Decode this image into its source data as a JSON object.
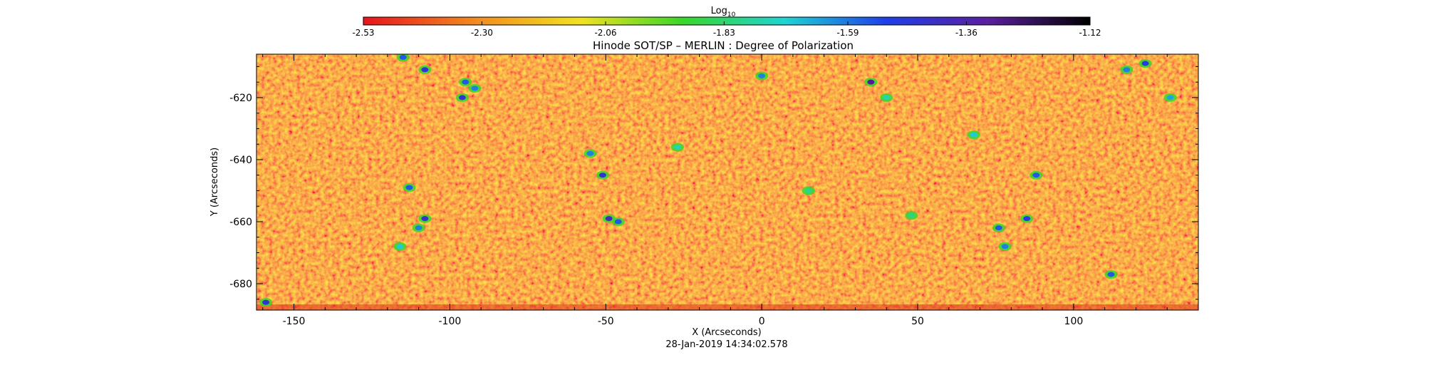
{
  "chart_data": {
    "type": "heatmap",
    "title": "Hinode SOT/SP – MERLIN : Degree of Polarization",
    "xlabel": "X (Arcseconds)",
    "ylabel": "Y (Arcseconds)",
    "timestamp": "28-Jan-2019 14:34:02.578",
    "xlim": [
      -162,
      140
    ],
    "ylim": [
      -688.5,
      -606
    ],
    "x_ticks": [
      -150,
      -100,
      -50,
      0,
      50,
      100
    ],
    "x_tick_labels": [
      "-150",
      "-100",
      "-50",
      "0",
      "50",
      "100"
    ],
    "y_ticks": [
      -620,
      -640,
      -660,
      -680
    ],
    "y_tick_labels": [
      "-620",
      "-640",
      "-660",
      "-680"
    ],
    "colorbar": {
      "title_base": "Log",
      "title_sub": "10",
      "min": -2.53,
      "max": -1.12,
      "tick_values": [
        -2.53,
        -2.3,
        -2.06,
        -1.83,
        -1.59,
        -1.36,
        -1.12
      ],
      "tick_labels": [
        "-2.53",
        "-2.30",
        "-2.06",
        "-1.83",
        "-1.59",
        "-1.36",
        "-1.12"
      ]
    },
    "field_value_range_typical": [
      -2.53,
      -2.15
    ],
    "colors": {
      "low": "#e8141c",
      "orange": "#f28f1f",
      "yellow": "#f2e21f",
      "green": "#39d629",
      "cyan": "#1fd4d4",
      "blue": "#1f3ee8",
      "purple": "#5a1f9e",
      "high": "#000000"
    },
    "features": [
      {
        "x": -115,
        "y": -607,
        "value": -1.55
      },
      {
        "x": -108,
        "y": -611,
        "value": -1.45
      },
      {
        "x": -95,
        "y": -615,
        "value": -1.55
      },
      {
        "x": -96,
        "y": -620,
        "value": -1.45
      },
      {
        "x": -92,
        "y": -617,
        "value": -1.6
      },
      {
        "x": -113,
        "y": -649,
        "value": -1.55
      },
      {
        "x": -108,
        "y": -659,
        "value": -1.45
      },
      {
        "x": -110,
        "y": -662,
        "value": -1.6
      },
      {
        "x": -116,
        "y": -668,
        "value": -1.7
      },
      {
        "x": -159,
        "y": -686,
        "value": -1.45
      },
      {
        "x": -51,
        "y": -645,
        "value": -1.45
      },
      {
        "x": -55,
        "y": -638,
        "value": -1.6
      },
      {
        "x": -49,
        "y": -659,
        "value": -1.4
      },
      {
        "x": -46,
        "y": -660,
        "value": -1.55
      },
      {
        "x": 0,
        "y": -613,
        "value": -1.6
      },
      {
        "x": 35,
        "y": -615,
        "value": -1.3
      },
      {
        "x": 40,
        "y": -620,
        "value": -1.75
      },
      {
        "x": 68,
        "y": -632,
        "value": -1.7
      },
      {
        "x": 88,
        "y": -645,
        "value": -1.55
      },
      {
        "x": 85,
        "y": -659,
        "value": -1.5
      },
      {
        "x": 76,
        "y": -662,
        "value": -1.55
      },
      {
        "x": 78,
        "y": -668,
        "value": -1.6
      },
      {
        "x": 112,
        "y": -677,
        "value": -1.55
      },
      {
        "x": 117,
        "y": -611,
        "value": -1.6
      },
      {
        "x": 123,
        "y": -609,
        "value": -1.5
      },
      {
        "x": 131,
        "y": -620,
        "value": -1.65
      },
      {
        "x": 48,
        "y": -658,
        "value": -1.8
      },
      {
        "x": -27,
        "y": -636,
        "value": -1.75
      },
      {
        "x": 15,
        "y": -650,
        "value": -1.8
      }
    ]
  }
}
